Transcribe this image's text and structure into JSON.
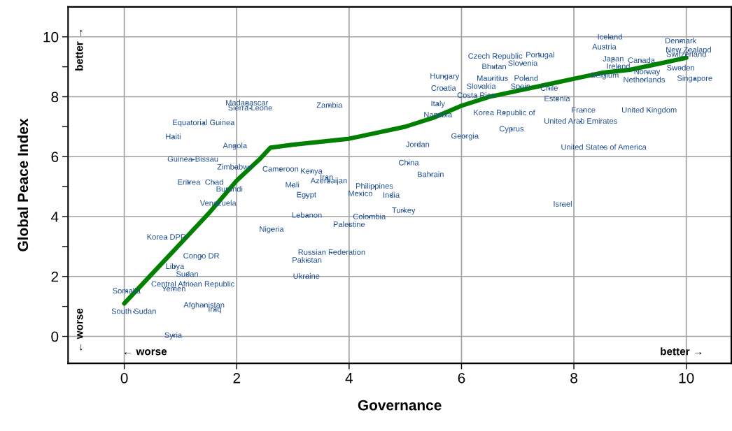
{
  "chart_data": {
    "type": "scatter",
    "xlabel": "Governance",
    "ylabel": "Global Peace Index",
    "xlim": [
      -1,
      10.8
    ],
    "ylim": [
      -0.9,
      11
    ],
    "xticks": [
      0,
      2,
      4,
      6,
      8,
      10
    ],
    "yticks": [
      0,
      {
        "value": 1,
        "label": null
      },
      2,
      {
        "value": 3,
        "label": null
      },
      4,
      {
        "value": 5,
        "label": null
      },
      6,
      {
        "value": 7,
        "label": null
      },
      8,
      {
        "value": 9,
        "label": null
      },
      10
    ],
    "grid": true,
    "series": [
      {
        "color": "#1f4f8f",
        "x": [
          8.64,
          8.54,
          9.9,
          10.04,
          10.0,
          8.7,
          9.2,
          8.79,
          9.9,
          9.3,
          8.55,
          9.25,
          10.15,
          6.6,
          7.4,
          7.09,
          6.58,
          6.55,
          7.15,
          7.05,
          7.56,
          6.35,
          5.68,
          5.7,
          6.26,
          5.58,
          7.7,
          6.76,
          5.58,
          8.17,
          9.34,
          8.12,
          6.89,
          6.06,
          5.22,
          8.53,
          5.06,
          5.45,
          4.75,
          4.45,
          4.2,
          4.97,
          4.36,
          4.0,
          3.25,
          3.24,
          2.99,
          3.64,
          3.6,
          3.33,
          2.62,
          3.69,
          3.25,
          3.24,
          7.8,
          2.78,
          1.97,
          1.22,
          1.97,
          0.87,
          1.41,
          2.18,
          2.24,
          3.65,
          1.15,
          1.6,
          1.87,
          1.67,
          0.75,
          1.37,
          0.9,
          1.12,
          1.22,
          0.88,
          0.04,
          0.17,
          1.42,
          1.61,
          0.87
        ],
        "values": [
          9.98,
          9.65,
          9.85,
          9.55,
          9.4,
          9.25,
          9.2,
          9.0,
          8.95,
          8.82,
          8.7,
          8.55,
          8.6,
          9.34,
          9.38,
          9.1,
          8.99,
          8.6,
          8.6,
          8.33,
          8.27,
          8.33,
          8.27,
          8.67,
          8.03,
          7.75,
          7.92,
          7.45,
          7.38,
          7.54,
          7.54,
          7.17,
          6.91,
          6.67,
          6.39,
          6.3,
          5.78,
          5.39,
          4.7,
          5.0,
          4.75,
          4.19,
          3.98,
          3.72,
          4.03,
          4.71,
          5.04,
          5.18,
          5.3,
          5.5,
          3.56,
          2.79,
          2.53,
          1.99,
          4.4,
          5.57,
          5.64,
          5.9,
          6.35,
          6.65,
          7.12,
          7.78,
          7.61,
          7.7,
          5.13,
          5.13,
          4.9,
          4.43,
          3.3,
          2.67,
          2.32,
          2.06,
          1.73,
          1.57,
          1.5,
          0.82,
          1.03,
          0.89,
          0.02
        ],
        "value_labels": [
          "Iceland",
          "Austria",
          "Denmark",
          "New Zealand",
          "Switzerland",
          "Japan",
          "Canada",
          "Ireland",
          "Sweden",
          "Norway",
          "Belgium",
          "Netherlands",
          "Singapore",
          "Czech Republic",
          "Portugal",
          "Slovenia",
          "Bhutan",
          "Mauritius",
          "Poland",
          "Spain",
          "Chile",
          "Slovakia",
          "Croatia",
          "Hungary",
          "Costa Rica",
          "Italy",
          "Estonia",
          "Korea Republic of",
          "Namibia",
          "France",
          "United Kingdom",
          "United Arab Emirates",
          "Cyprus",
          "Georgia",
          "Jordan",
          "United States of America",
          "China",
          "Bahrain",
          "India",
          "Philippines",
          "Mexico",
          "Turkey",
          "Colombia",
          "Palestine",
          "Lebanon",
          "Egypt",
          "Mali",
          "Azerbaijan",
          "Iran",
          "Kenya",
          "Nigeria",
          "Russian Federation",
          "Pakistan",
          "Ukraine",
          "Israel",
          "Cameroon",
          "Zimbabwe",
          "Guinea-Bissau",
          "Angola",
          "Haiti",
          "Equatorial Guinea",
          "Madagascar",
          "Sierra Leone",
          "Zambia",
          "Eritrea",
          "Chad",
          "Burundi",
          "Venezuela",
          "Korea DPR",
          "Congo DR",
          "Libya",
          "Sudan",
          "Central African Republic",
          "Yemen",
          "Somalia",
          "South Sudan",
          "Afghanistan",
          "Iraq",
          "Syria"
        ]
      },
      {
        "type": "line",
        "color": "#008000",
        "x": [
          0,
          0.5,
          1,
          1.5,
          2,
          2.4,
          2.6,
          3,
          3.5,
          4,
          4.5,
          5,
          5.5,
          6,
          6.5,
          7,
          7.5,
          8,
          8.5,
          9,
          9.5,
          10
        ],
        "values": [
          1.1,
          2.1,
          3.1,
          4.1,
          5.2,
          5.9,
          6.3,
          6.4,
          6.5,
          6.6,
          6.8,
          7.0,
          7.3,
          7.7,
          8.0,
          8.2,
          8.4,
          8.6,
          8.8,
          8.9,
          9.1,
          9.3
        ]
      }
    ],
    "annotations": [
      "better →",
      "← worse",
      "← worse",
      "better →"
    ]
  }
}
